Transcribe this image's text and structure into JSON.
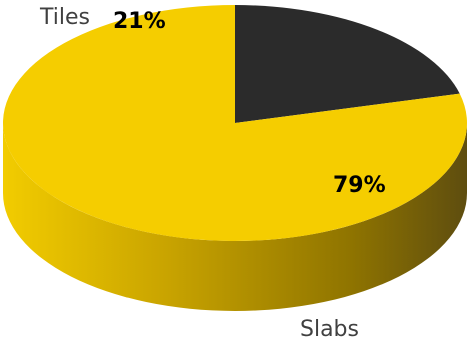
{
  "chart_data": {
    "type": "pie",
    "title": "",
    "slices": [
      {
        "label": "Tiles",
        "value": 21,
        "value_label": "21%",
        "color": "#2b2b2b"
      },
      {
        "label": "Slabs",
        "value": 79,
        "value_label": "79%",
        "color": "#f5cd00"
      }
    ],
    "style": "3d",
    "legend": "none"
  }
}
